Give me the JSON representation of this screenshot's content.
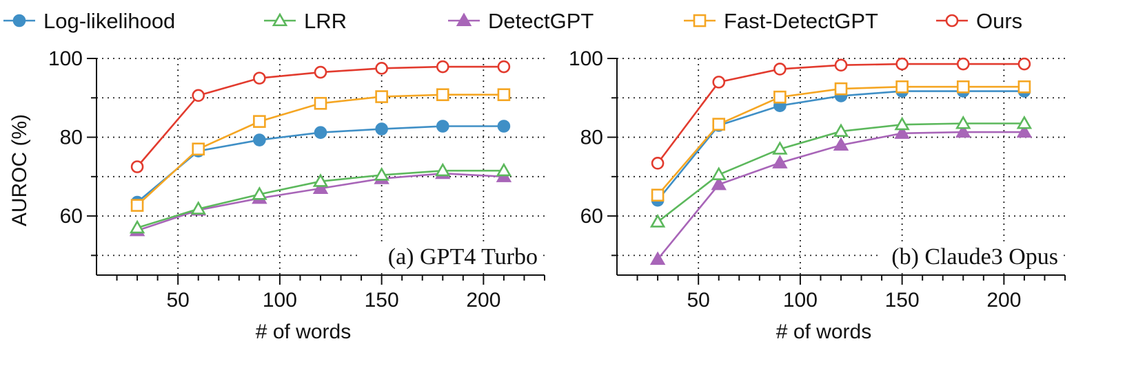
{
  "legend": [
    {
      "name": "Log-likelihood",
      "color": "#3f8fc6",
      "marker": "circle-filled"
    },
    {
      "name": "LRR",
      "color": "#5cb85c",
      "marker": "triangle-open"
    },
    {
      "name": "DetectGPT",
      "color": "#a865b8",
      "marker": "triangle-filled"
    },
    {
      "name": "Fast-DetectGPT",
      "color": "#f5a623",
      "marker": "square-open"
    },
    {
      "name": "Ours",
      "color": "#e23b2e",
      "marker": "circle-open"
    }
  ],
  "chart_data": [
    {
      "type": "line",
      "label": "(a) GPT4 Turbo",
      "xlabel": "# of words",
      "ylabel": "AUROC (%)",
      "xlim": [
        10,
        230
      ],
      "ylim": [
        45,
        100
      ],
      "xticks": [
        50,
        100,
        150,
        200
      ],
      "yticks": [
        60,
        80,
        100
      ],
      "x": [
        30,
        60,
        90,
        120,
        150,
        180,
        210
      ],
      "series": [
        {
          "name": "Log-likelihood",
          "values": [
            63.5,
            76.5,
            79.3,
            81.2,
            82.1,
            82.8,
            82.8
          ]
        },
        {
          "name": "LRR",
          "values": [
            57.0,
            61.8,
            65.5,
            68.8,
            70.4,
            71.5,
            71.5
          ]
        },
        {
          "name": "DetectGPT",
          "values": [
            56.3,
            61.5,
            64.5,
            67.0,
            69.5,
            70.8,
            70.0
          ]
        },
        {
          "name": "Fast-DetectGPT",
          "values": [
            62.7,
            77.0,
            84.0,
            88.6,
            90.3,
            90.8,
            90.8
          ]
        },
        {
          "name": "Ours",
          "values": [
            72.5,
            90.6,
            95.0,
            96.5,
            97.5,
            97.9,
            97.9
          ]
        }
      ]
    },
    {
      "type": "line",
      "label": "(b) Claude3 Opus",
      "xlabel": "# of words",
      "ylabel": "",
      "xlim": [
        10,
        230
      ],
      "ylim": [
        45,
        100
      ],
      "xticks": [
        50,
        100,
        150,
        200
      ],
      "yticks": [
        60,
        80,
        100
      ],
      "x": [
        30,
        60,
        90,
        120,
        150,
        180,
        210
      ],
      "series": [
        {
          "name": "Log-likelihood",
          "values": [
            64.0,
            83.0,
            88.0,
            90.5,
            91.7,
            91.7,
            91.7
          ]
        },
        {
          "name": "LRR",
          "values": [
            58.5,
            70.5,
            77.0,
            81.5,
            83.2,
            83.5,
            83.5
          ]
        },
        {
          "name": "DetectGPT",
          "values": [
            49.0,
            68.0,
            73.5,
            78.0,
            81.0,
            81.3,
            81.3
          ]
        },
        {
          "name": "Fast-DetectGPT",
          "values": [
            65.3,
            83.3,
            90.2,
            92.3,
            92.8,
            92.8,
            92.8
          ]
        },
        {
          "name": "Ours",
          "values": [
            73.4,
            94.0,
            97.3,
            98.3,
            98.6,
            98.6,
            98.6
          ]
        }
      ]
    }
  ]
}
